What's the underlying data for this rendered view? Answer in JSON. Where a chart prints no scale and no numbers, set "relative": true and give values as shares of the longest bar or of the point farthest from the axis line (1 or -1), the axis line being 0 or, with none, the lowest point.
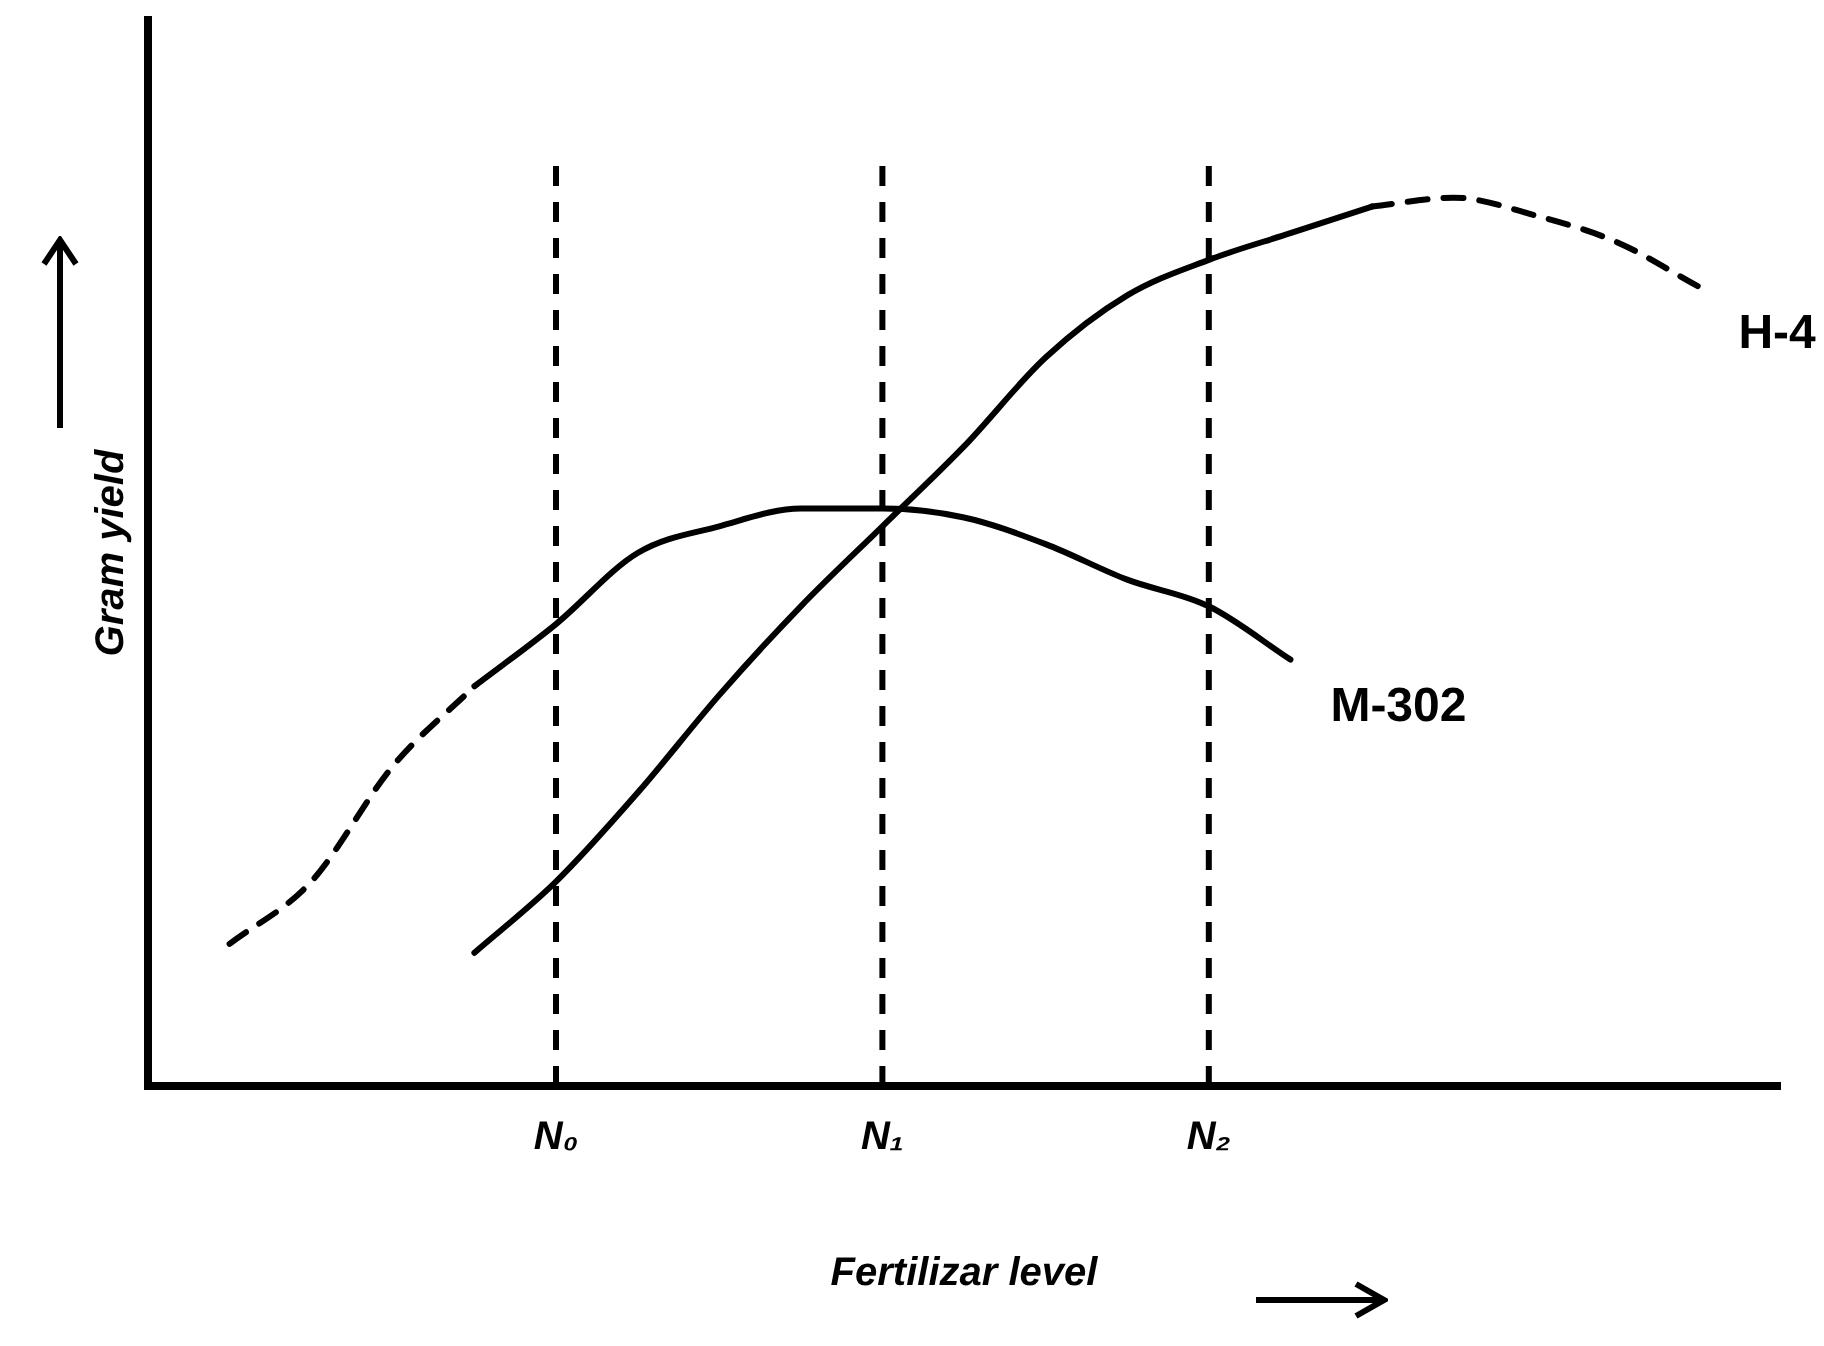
{
  "chart_data": {
    "type": "line",
    "relative": true,
    "xlabel": "Fertilizar level",
    "ylabel": "Gram yield",
    "categories": [
      null,
      null,
      null,
      null,
      null,
      "N₀",
      null,
      null,
      null,
      "N₁",
      null,
      null,
      null,
      "N₂",
      null,
      null,
      null,
      null,
      null,
      null,
      null
    ],
    "ref_lines": [
      {
        "axis": "x",
        "value": "N₀",
        "color": "#000000",
        "line_style": "dashed"
      },
      {
        "axis": "x",
        "value": "N₁",
        "color": "#000000",
        "line_style": "dashed"
      },
      {
        "axis": "x",
        "value": "N₂",
        "color": "#000000",
        "line_style": "dashed"
      }
    ],
    "series": [
      {
        "name": "H-4",
        "color": "#000000",
        "line_style": "solid",
        "values": [
          null,
          null,
          null,
          null,
          0.15,
          0.23,
          0.33,
          0.44,
          0.54,
          0.63,
          0.72,
          0.82,
          0.89,
          0.93,
          0.96,
          0.99,
          null,
          null,
          null,
          null,
          null
        ]
      },
      {
        "color": "#000000",
        "line_style": "dashed",
        "values": [
          null,
          null,
          null,
          null,
          null,
          null,
          null,
          null,
          null,
          null,
          null,
          null,
          null,
          null,
          null,
          0.99,
          1,
          0.98,
          0.95,
          0.9,
          null
        ]
      },
      {
        "name": "M-302",
        "color": "#000000",
        "line_style": "solid",
        "values": [
          null,
          null,
          null,
          null,
          0.45,
          0.52,
          0.6,
          0.63,
          0.65,
          0.65,
          0.64,
          0.61,
          0.57,
          0.54,
          0.48,
          null,
          null,
          null,
          null,
          null,
          null
        ]
      },
      {
        "color": "#000000",
        "line_style": "dashed",
        "values": [
          null,
          0.16,
          0.23,
          0.36,
          0.45,
          null,
          null,
          null,
          null,
          null,
          null,
          null,
          null,
          null,
          null,
          null,
          null,
          null,
          null,
          null,
          null
        ]
      }
    ],
    "grid": false,
    "legend": false,
    "marker": "none"
  }
}
